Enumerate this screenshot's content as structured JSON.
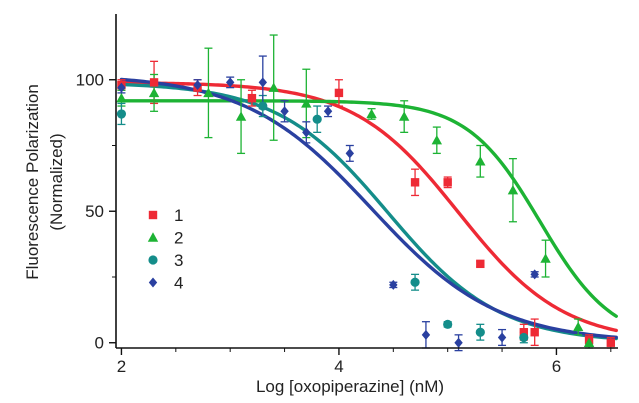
{
  "chart_data": {
    "type": "scatter",
    "xlabel": "Log [oxopiperazine] (nM)",
    "ylabel": "Fluorescence Polarization",
    "ylabel2": "(Normalized)",
    "xlim": [
      1.95,
      6.75
    ],
    "ylim": [
      -2,
      125
    ],
    "xticks": [
      2,
      4,
      6
    ],
    "yticks": [
      0,
      50,
      100
    ],
    "grid": false,
    "legend_position": "left-middle",
    "series": [
      {
        "name": "1",
        "color": "#ee2a35",
        "marker": "square",
        "curve": {
          "top": 99,
          "bottom": 0,
          "logIC50": 5.1,
          "hill": 0.9
        },
        "points": [
          {
            "x": 2.0,
            "y": 98,
            "err": 2
          },
          {
            "x": 2.3,
            "y": 99,
            "err": 8
          },
          {
            "x": 2.7,
            "y": 97,
            "err": 3
          },
          {
            "x": 3.2,
            "y": 93,
            "err": 3
          },
          {
            "x": 4.0,
            "y": 95,
            "err": 5
          },
          {
            "x": 4.7,
            "y": 61,
            "err": 5
          },
          {
            "x": 5.0,
            "y": 61,
            "err": 2
          },
          {
            "x": 5.3,
            "y": 30,
            "err": 1
          },
          {
            "x": 5.7,
            "y": 4,
            "err": 3
          },
          {
            "x": 5.8,
            "y": 4,
            "err": 5
          },
          {
            "x": 6.3,
            "y": 1,
            "err": 2
          },
          {
            "x": 6.5,
            "y": 0,
            "err": 2
          }
        ]
      },
      {
        "name": "2",
        "color": "#1db334",
        "marker": "triangle",
        "curve": {
          "top": 92,
          "bottom": 0,
          "logIC50": 5.85,
          "hill": 1.3
        },
        "points": [
          {
            "x": 2.0,
            "y": 93,
            "err": 3
          },
          {
            "x": 2.3,
            "y": 95,
            "err": 7
          },
          {
            "x": 2.8,
            "y": 95,
            "err": 17
          },
          {
            "x": 3.1,
            "y": 86,
            "err": 14
          },
          {
            "x": 3.4,
            "y": 97,
            "err": 20
          },
          {
            "x": 3.7,
            "y": 91,
            "err": 13
          },
          {
            "x": 4.3,
            "y": 87,
            "err": 2
          },
          {
            "x": 4.6,
            "y": 86,
            "err": 6
          },
          {
            "x": 4.9,
            "y": 77,
            "err": 5
          },
          {
            "x": 5.3,
            "y": 69,
            "err": 6
          },
          {
            "x": 5.6,
            "y": 58,
            "err": 12
          },
          {
            "x": 5.9,
            "y": 32,
            "err": 7
          },
          {
            "x": 6.2,
            "y": 6,
            "err": 3
          },
          {
            "x": 6.3,
            "y": 0,
            "err": 2
          }
        ]
      },
      {
        "name": "3",
        "color": "#148d8a",
        "marker": "circle",
        "curve": {
          "top": 99,
          "bottom": 0,
          "logIC50": 4.45,
          "hill": 0.85
        },
        "points": [
          {
            "x": 2.0,
            "y": 87,
            "err": 4
          },
          {
            "x": 3.3,
            "y": 90,
            "err": 4
          },
          {
            "x": 3.8,
            "y": 85,
            "err": 5
          },
          {
            "x": 4.7,
            "y": 23,
            "err": 3
          },
          {
            "x": 5.0,
            "y": 7,
            "err": 1
          },
          {
            "x": 5.3,
            "y": 4,
            "err": 3
          },
          {
            "x": 5.7,
            "y": 2,
            "err": 2
          }
        ]
      },
      {
        "name": "4",
        "color": "#2a40a0",
        "marker": "diamond",
        "curve": {
          "top": 102,
          "bottom": 0,
          "logIC50": 4.3,
          "hill": 0.75
        },
        "points": [
          {
            "x": 2.0,
            "y": 97,
            "err": 2
          },
          {
            "x": 2.7,
            "y": 98,
            "err": 2
          },
          {
            "x": 3.0,
            "y": 99,
            "err": 2
          },
          {
            "x": 3.3,
            "y": 99,
            "err": 10
          },
          {
            "x": 3.5,
            "y": 88,
            "err": 4
          },
          {
            "x": 3.7,
            "y": 80,
            "err": 4
          },
          {
            "x": 3.9,
            "y": 88,
            "err": 2
          },
          {
            "x": 4.1,
            "y": 72,
            "err": 3
          },
          {
            "x": 4.5,
            "y": 22,
            "err": 1
          },
          {
            "x": 4.8,
            "y": 3,
            "err": 5
          },
          {
            "x": 5.1,
            "y": 0,
            "err": 3
          },
          {
            "x": 5.5,
            "y": 2,
            "err": 3
          },
          {
            "x": 5.8,
            "y": 26,
            "err": 1
          }
        ]
      }
    ]
  }
}
